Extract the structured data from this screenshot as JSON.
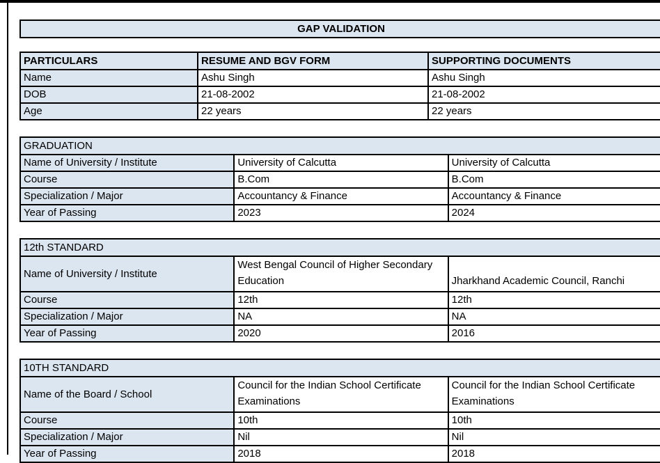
{
  "page": {
    "title": "GAP VALIDATION",
    "accent_color": "#dce6f1",
    "border_color": "#000000"
  },
  "particulars_table": {
    "headers": [
      "PARTICULARS",
      "RESUME AND BGV FORM",
      "SUPPORTING DOCUMENTS"
    ],
    "rows": [
      {
        "label": "Name",
        "resume": "Ashu Singh",
        "supporting": "Ashu Singh"
      },
      {
        "label": "DOB",
        "resume": "21-08-2002",
        "supporting": "21-08-2002"
      },
      {
        "label": "Age",
        "resume": "22 years",
        "supporting": "22 years"
      }
    ]
  },
  "sections": [
    {
      "title": "GRADUATION",
      "rows": [
        {
          "label": "Name of University / Institute",
          "resume": "University of Calcutta",
          "supporting": "University of Calcutta"
        },
        {
          "label": "Course",
          "resume": "B.Com",
          "supporting": "B.Com"
        },
        {
          "label": "Specialization / Major",
          "resume": "Accountancy & Finance",
          "supporting": "Accountancy & Finance"
        },
        {
          "label": "Year of Passing",
          "resume": "2023",
          "supporting": "2024"
        }
      ]
    },
    {
      "title": "12th STANDARD",
      "rows": [
        {
          "label": "Name of University / Institute",
          "resume": "West Bengal Council of Higher Secondary Education",
          "supporting": "Jharkhand Academic Council, Ranchi"
        },
        {
          "label": "Course",
          "resume": "12th",
          "supporting": "12th"
        },
        {
          "label": "Specialization / Major",
          "resume": "NA",
          "supporting": "NA"
        },
        {
          "label": "Year of Passing",
          "resume": "2020",
          "supporting": "2016"
        }
      ]
    },
    {
      "title": "10TH STANDARD",
      "rows": [
        {
          "label": "Name of the Board / School",
          "resume": "Council for the Indian School Certificate Examinations",
          "supporting": "Council for the Indian School Certificate Examinations"
        },
        {
          "label": "Course",
          "resume": "10th",
          "supporting": "10th"
        },
        {
          "label": "Specialization / Major",
          "resume": "Nil",
          "supporting": "Nil"
        },
        {
          "label": "Year of Passing",
          "resume": "2018",
          "supporting": "2018"
        }
      ]
    }
  ]
}
